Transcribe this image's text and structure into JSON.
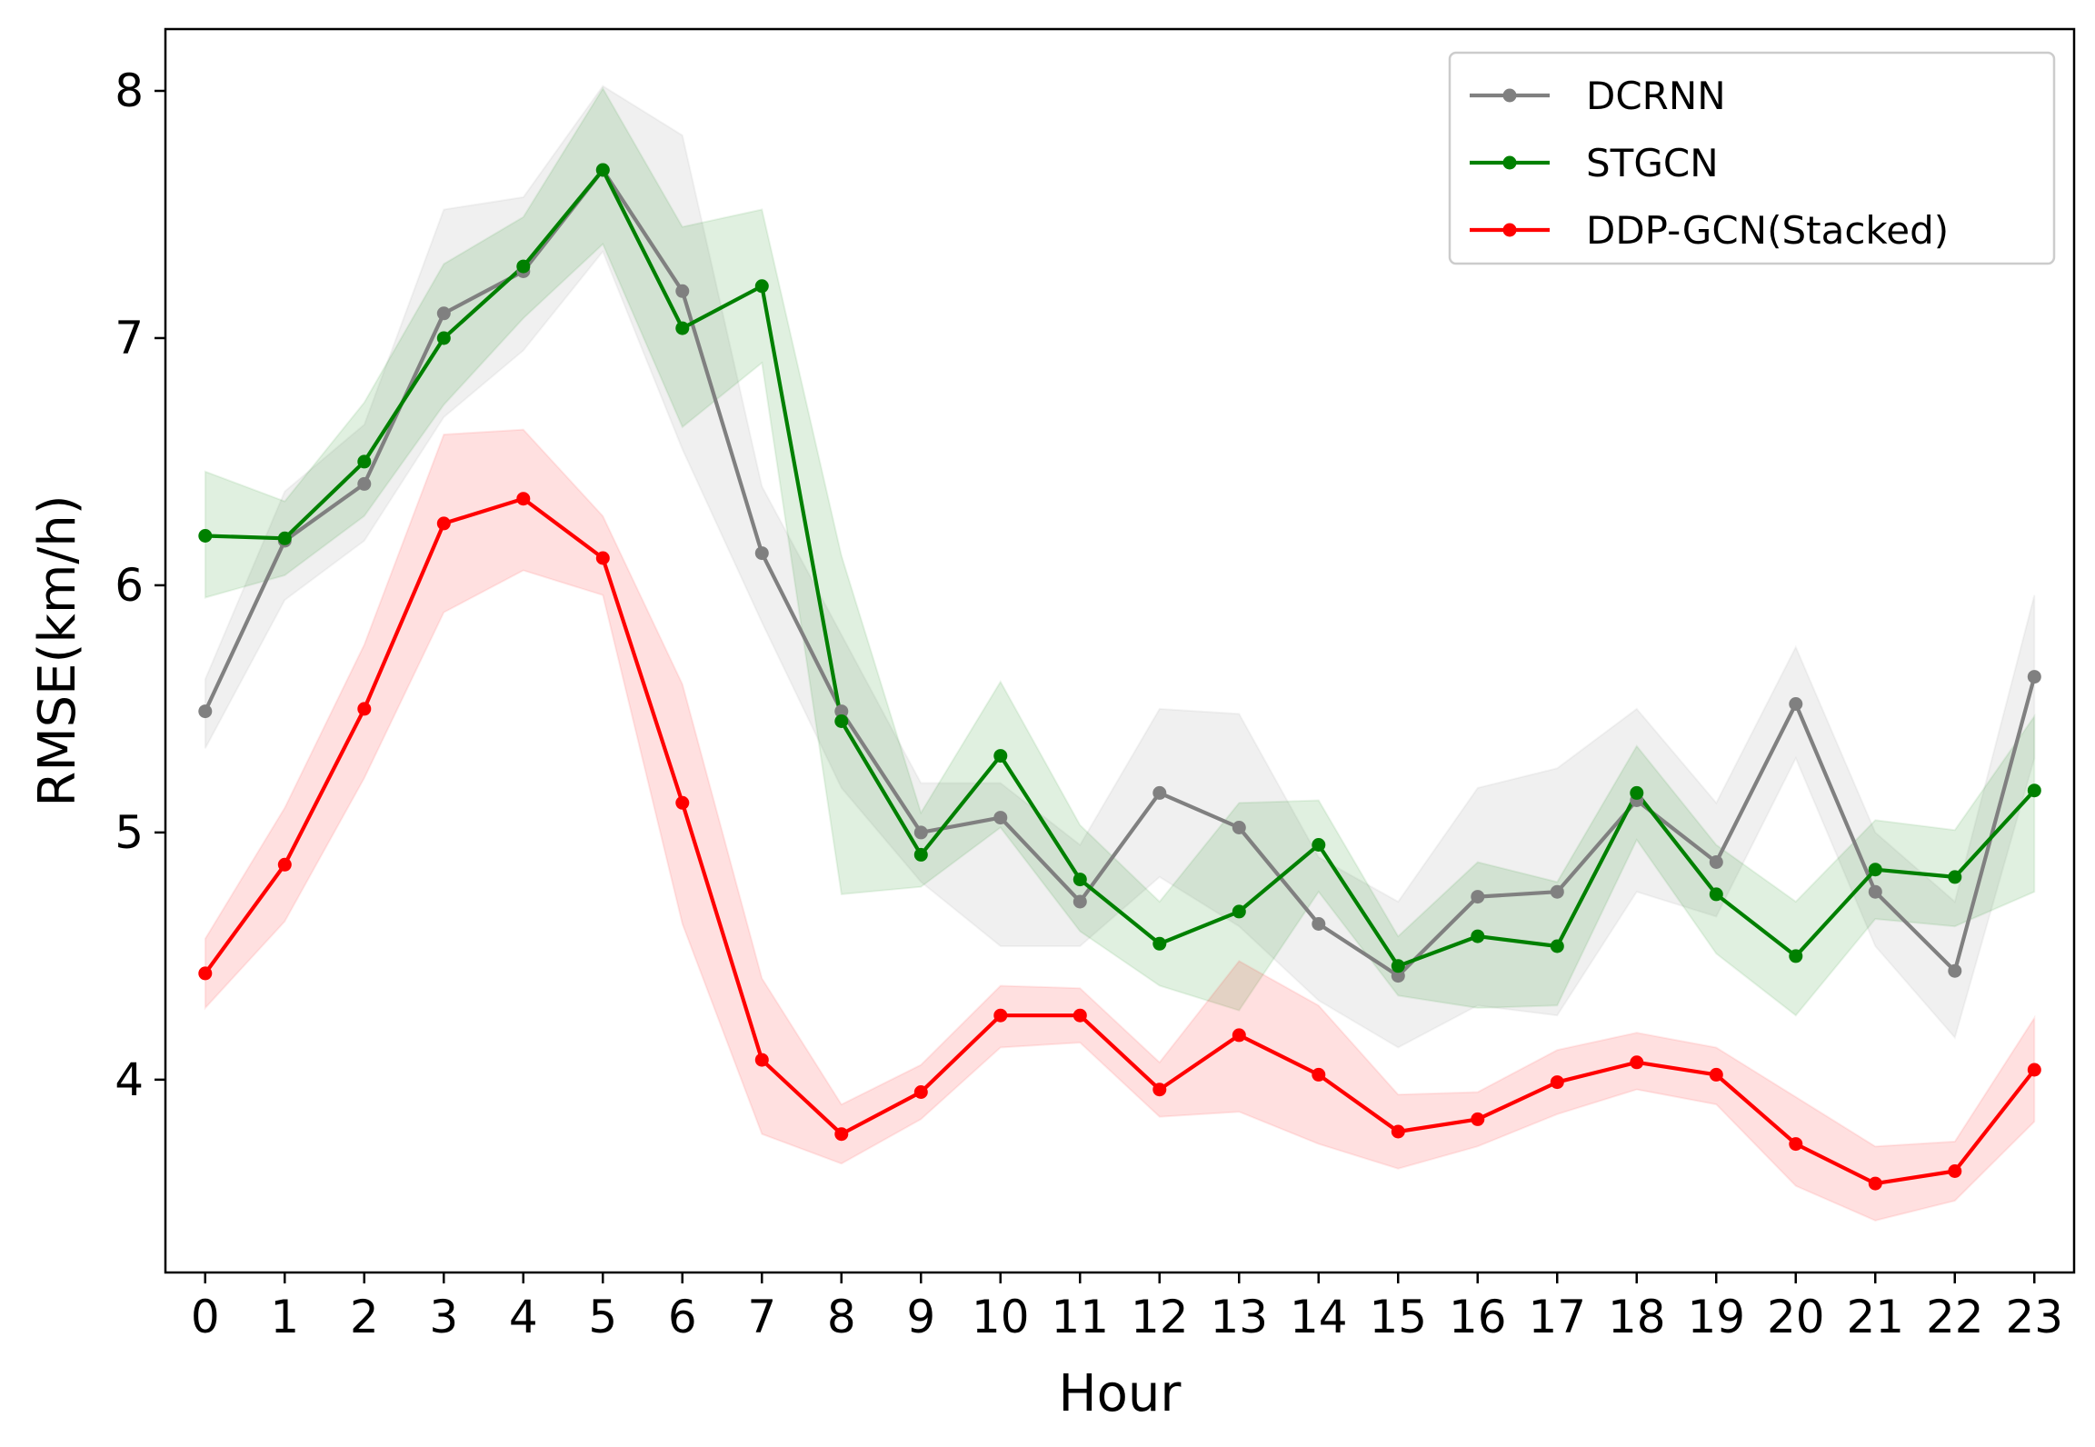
{
  "chart_data": {
    "type": "line",
    "xlabel": "Hour",
    "ylabel": "RMSE(km/h)",
    "categories": [
      "0",
      "1",
      "2",
      "3",
      "4",
      "5",
      "6",
      "7",
      "8",
      "9",
      "10",
      "11",
      "12",
      "13",
      "14",
      "15",
      "16",
      "17",
      "18",
      "19",
      "20",
      "21",
      "22",
      "23"
    ],
    "x": [
      0,
      1,
      2,
      3,
      4,
      5,
      6,
      7,
      8,
      9,
      10,
      11,
      12,
      13,
      14,
      15,
      16,
      17,
      18,
      19,
      20,
      21,
      22,
      23
    ],
    "yticks": [
      4,
      5,
      6,
      7,
      8
    ],
    "ylim": [
      3.22,
      8.25
    ],
    "xlim": [
      -0.5,
      23.5
    ],
    "grid": false,
    "legend_position": "top-right",
    "series": [
      {
        "name": "DCRNN",
        "color": "#808080",
        "band_opacity": 0.12,
        "values": [
          5.49,
          6.18,
          6.41,
          7.1,
          7.27,
          7.68,
          7.19,
          6.13,
          5.49,
          5.0,
          5.06,
          4.72,
          5.16,
          5.02,
          4.63,
          4.42,
          4.74,
          4.76,
          5.13,
          4.88,
          5.52,
          4.76,
          4.44,
          5.63
        ],
        "upper": [
          5.62,
          6.38,
          6.65,
          7.52,
          7.57,
          8.02,
          7.82,
          6.4,
          5.8,
          5.2,
          5.2,
          4.95,
          5.5,
          5.48,
          4.9,
          4.72,
          5.18,
          5.26,
          5.5,
          5.12,
          5.75,
          5.0,
          4.72,
          5.96
        ],
        "lower": [
          5.34,
          5.94,
          6.18,
          6.68,
          6.95,
          7.35,
          6.55,
          5.85,
          5.18,
          4.8,
          4.54,
          4.54,
          4.82,
          4.62,
          4.32,
          4.13,
          4.3,
          4.26,
          4.76,
          4.66,
          5.3,
          4.54,
          4.17,
          5.3
        ]
      },
      {
        "name": "STGCN",
        "color": "#008000",
        "band_opacity": 0.12,
        "values": [
          6.2,
          6.19,
          6.5,
          7.0,
          7.29,
          7.68,
          7.04,
          7.21,
          5.45,
          4.91,
          5.31,
          4.81,
          4.55,
          4.68,
          4.95,
          4.46,
          4.58,
          4.54,
          5.16,
          4.75,
          4.5,
          4.85,
          4.82,
          5.17
        ],
        "upper": [
          6.46,
          6.34,
          6.74,
          7.3,
          7.49,
          8.01,
          7.45,
          7.52,
          6.12,
          5.08,
          5.61,
          5.03,
          4.72,
          5.12,
          5.13,
          4.58,
          4.88,
          4.8,
          5.35,
          4.95,
          4.72,
          5.05,
          5.01,
          5.47
        ],
        "lower": [
          5.95,
          6.04,
          6.28,
          6.73,
          7.08,
          7.38,
          6.64,
          6.9,
          4.75,
          4.78,
          5.02,
          4.6,
          4.38,
          4.28,
          4.76,
          4.34,
          4.29,
          4.3,
          4.97,
          4.51,
          4.26,
          4.65,
          4.62,
          4.76
        ]
      },
      {
        "name": "DDP-GCN(Stacked)",
        "color": "#ff0000",
        "band_opacity": 0.12,
        "values": [
          4.43,
          4.87,
          5.5,
          6.25,
          6.35,
          6.11,
          5.12,
          4.08,
          3.78,
          3.95,
          4.26,
          4.26,
          3.96,
          4.18,
          4.02,
          3.79,
          3.84,
          3.99,
          4.07,
          4.02,
          3.74,
          3.58,
          3.63,
          4.04
        ],
        "upper": [
          4.57,
          5.1,
          5.76,
          6.61,
          6.63,
          6.28,
          5.6,
          4.41,
          3.9,
          4.06,
          4.38,
          4.37,
          4.07,
          4.48,
          4.3,
          3.94,
          3.95,
          4.12,
          4.19,
          4.13,
          3.93,
          3.73,
          3.75,
          4.25
        ],
        "lower": [
          4.29,
          4.64,
          5.22,
          5.89,
          6.06,
          5.96,
          4.63,
          3.78,
          3.66,
          3.84,
          4.13,
          4.15,
          3.85,
          3.87,
          3.74,
          3.64,
          3.73,
          3.86,
          3.96,
          3.9,
          3.57,
          3.43,
          3.51,
          3.83
        ]
      }
    ]
  }
}
